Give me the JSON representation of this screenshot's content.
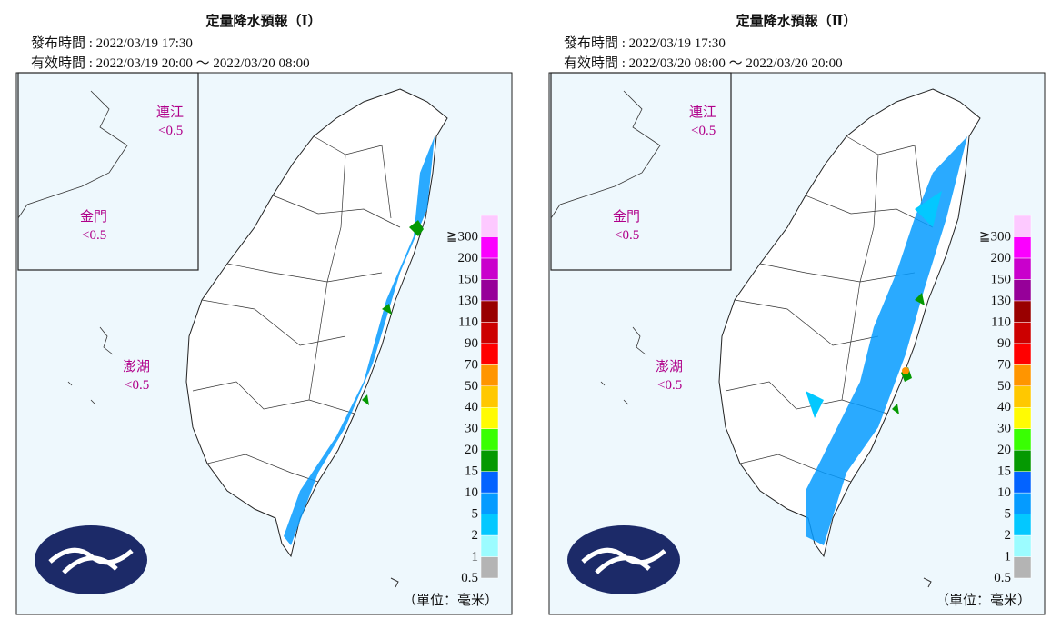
{
  "panels": [
    {
      "title": "定量降水預報（Ⅰ）",
      "issued": "發布時間 : 2022/03/19 17:30",
      "valid": "有效時間 : 2022/03/19 20:00 ～ 2022/03/20 08:00",
      "islands": [
        {
          "name": "連江",
          "value": "<0.5"
        },
        {
          "name": "金門",
          "value": "<0.5"
        },
        {
          "name": "澎湖",
          "value": "<0.5"
        }
      ],
      "unit": "（單位：毫米）"
    },
    {
      "title": "定量降水預報（Ⅱ）",
      "issued": "發布時間 : 2022/03/19 17:30",
      "valid": "有效時間 : 2022/03/20 08:00 ～ 2022/03/20 20:00",
      "islands": [
        {
          "name": "連江",
          "value": "<0.5"
        },
        {
          "name": "金門",
          "value": "<0.5"
        },
        {
          "name": "澎湖",
          "value": "<0.5"
        }
      ],
      "unit": "（單位：毫米）"
    }
  ],
  "legend": {
    "labels": [
      "0.5",
      "1",
      "2",
      "5",
      "10",
      "15",
      "20",
      "30",
      "40",
      "50",
      "70",
      "90",
      "110",
      "130",
      "150",
      "200",
      "≧300"
    ],
    "colors": [
      "#b4b4b4",
      "#9cfcff",
      "#03c8ff",
      "#059bff",
      "#0363ff",
      "#059902",
      "#39ff03",
      "#fffb03",
      "#ffc800",
      "#ff9500",
      "#ff0000",
      "#cc0000",
      "#990000",
      "#960099",
      "#c900cc",
      "#fb00ff",
      "#fdc9ff"
    ]
  }
}
